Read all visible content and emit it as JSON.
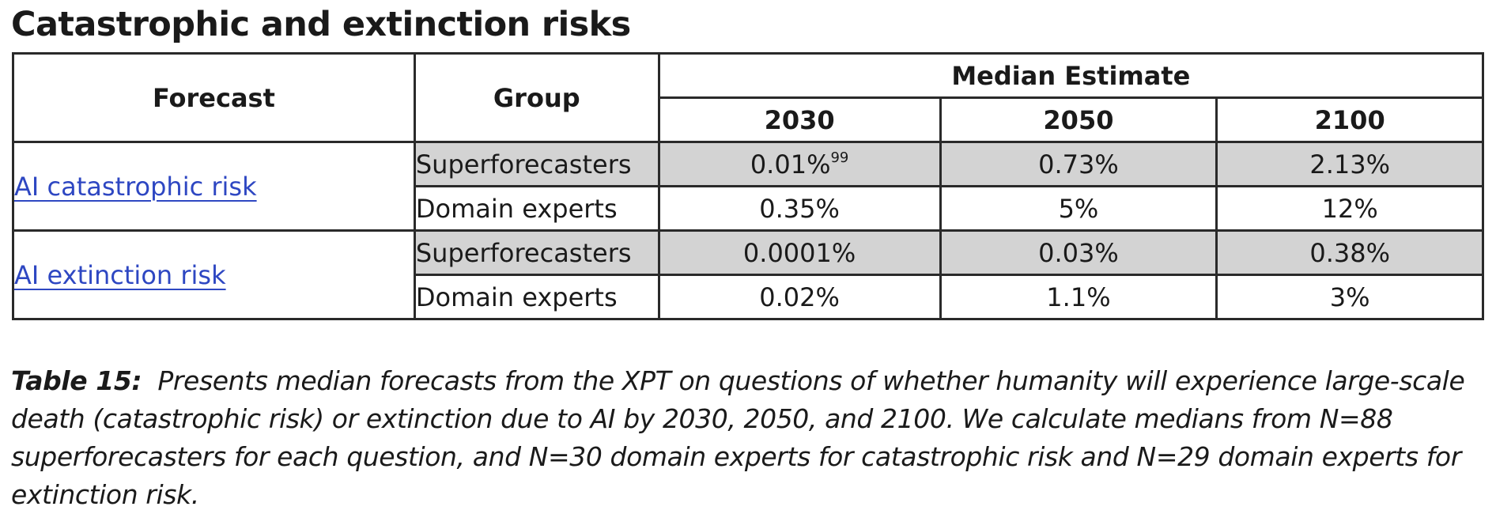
{
  "heading": "Catastrophic and extinction risks",
  "table": {
    "header": {
      "forecast": "Forecast",
      "group": "Group",
      "median_estimate": "Median Estimate",
      "years": [
        "2030",
        "2050",
        "2100"
      ]
    },
    "forecasts": [
      {
        "label": "AI catastrophic risk",
        "rows": [
          {
            "group": "Superforecasters",
            "v2030": "0.01%",
            "v2030_footnote": "99",
            "v2050": "0.73%",
            "v2100": "2.13%"
          },
          {
            "group": "Domain experts",
            "v2030": "0.35%",
            "v2050": "5%",
            "v2100": "12%"
          }
        ]
      },
      {
        "label": "AI extinction risk",
        "rows": [
          {
            "group": "Superforecasters",
            "v2030": "0.0001%",
            "v2050": "0.03%",
            "v2100": "0.38%"
          },
          {
            "group": "Domain experts",
            "v2030": "0.02%",
            "v2050": "1.1%",
            "v2100": "3%"
          }
        ]
      }
    ]
  },
  "caption": {
    "label": "Table 15:",
    "text": "Presents median forecasts from the XPT on questions of whether humanity will experience large-scale death (catastrophic risk) or extinction due to AI by 2030, 2050, and 2100. We calculate medians from N=88 superforecasters for each question, and N=30 domain experts for catastrophic risk and N=29 domain experts for extinction risk."
  },
  "colors": {
    "link": "#2e47c2",
    "shaded_row": "#d3d3d3",
    "border": "#2a2a2a"
  }
}
